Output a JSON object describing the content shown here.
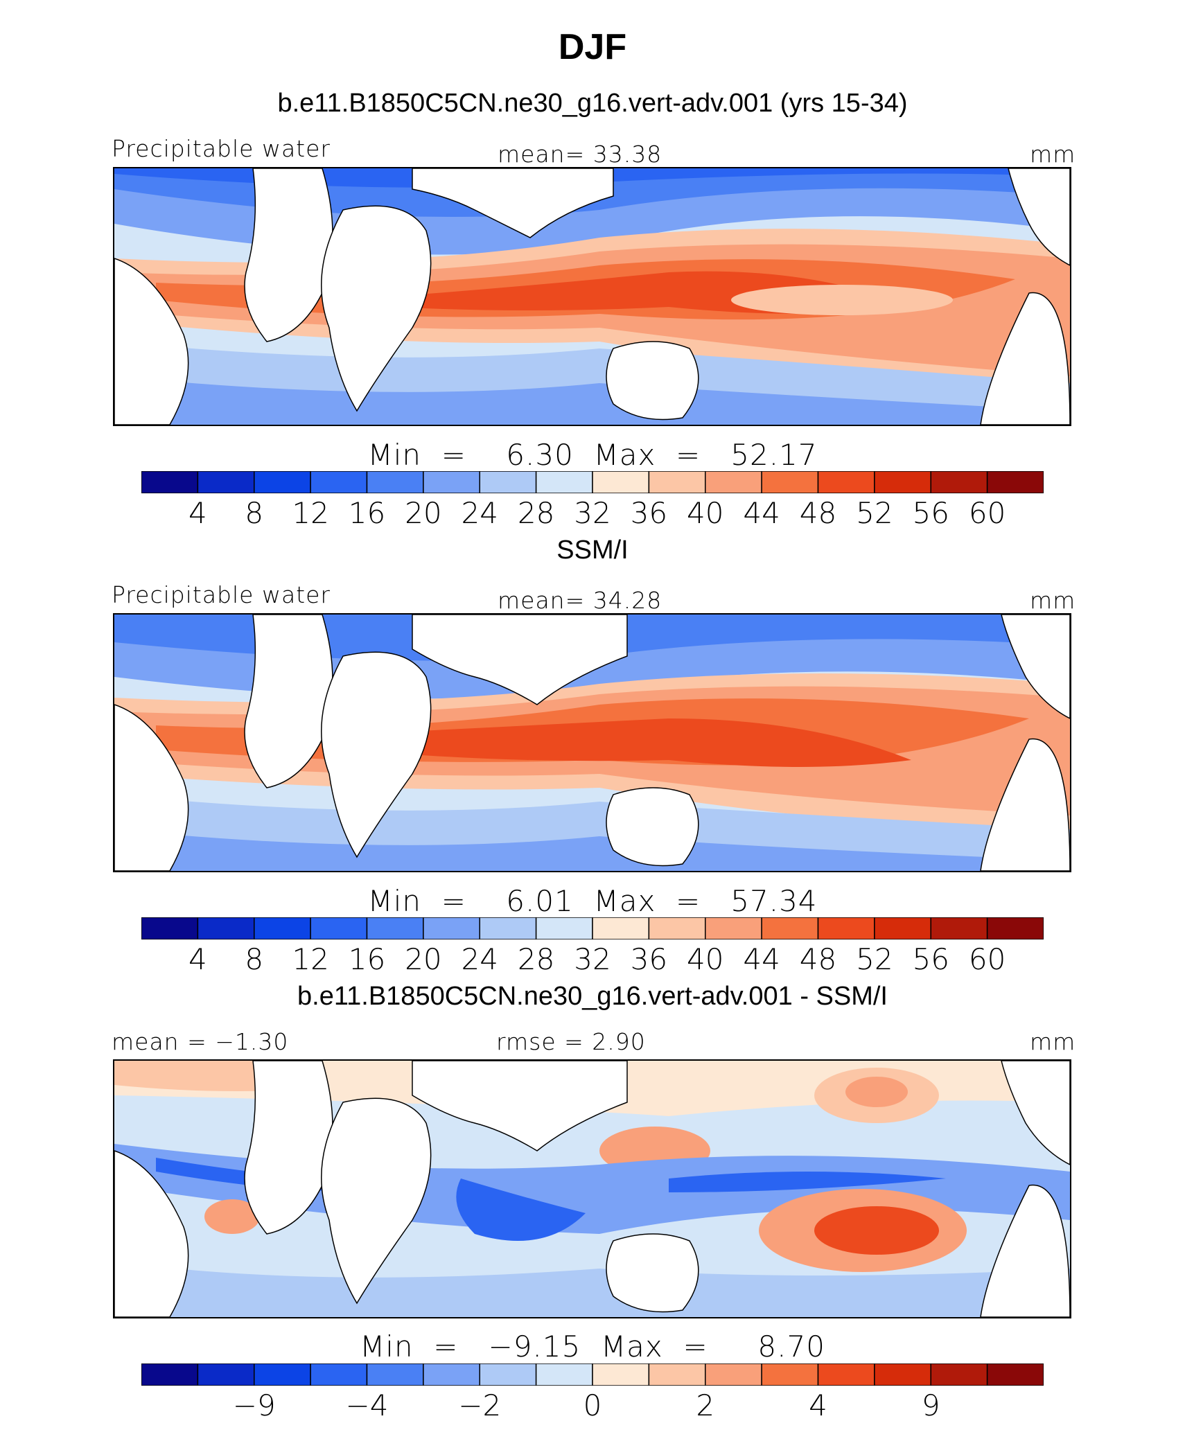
{
  "title": "DJF",
  "panels": [
    {
      "title": "b.e11.B1850C5CN.ne30_g16.vert-adv.001 (yrs 15-34)",
      "left_label": "Precipitable water",
      "center_label": "mean=   33.38",
      "right_label": "mm",
      "minmax": "Min  =    6.30  Max  =   52.17",
      "colorbar_ticks": [
        "4",
        "8",
        "12",
        "16",
        "20",
        "24",
        "28",
        "32",
        "36",
        "40",
        "44",
        "48",
        "52",
        "56",
        "60"
      ],
      "min": 6.3,
      "max": 52.17,
      "mean": 33.38
    },
    {
      "title": "SSM/I",
      "left_label": "Precipitable water",
      "center_label": "mean=   34.28",
      "right_label": "mm",
      "minmax": "Min  =    6.01  Max  =   57.34",
      "colorbar_ticks": [
        "4",
        "8",
        "12",
        "16",
        "20",
        "24",
        "28",
        "32",
        "36",
        "40",
        "44",
        "48",
        "52",
        "56",
        "60"
      ],
      "min": 6.01,
      "max": 57.34,
      "mean": 34.28
    },
    {
      "title": "b.e11.B1850C5CN.ne30_g16.vert-adv.001 - SSM/I",
      "left_label": "mean =   −1.30",
      "center_label": "rmse =     2.90",
      "right_label": "mm",
      "minmax": "Min  =   −9.15  Max  =     8.70",
      "colorbar_ticks": [
        "−9",
        "−4",
        "−2",
        "0",
        "2",
        "4",
        "9"
      ],
      "min": -9.15,
      "max": 8.7,
      "mean": -1.3,
      "rmse": 2.9
    }
  ],
  "colorbar_colors": [
    "#08088c",
    "#0a2ac8",
    "#0c44e6",
    "#2a64f2",
    "#4a80f4",
    "#7aa2f6",
    "#aecaf6",
    "#d4e6f8",
    "#fde8d4",
    "#fcc6a6",
    "#f9a07a",
    "#f4723e",
    "#ec4a1e",
    "#d62c0a",
    "#b01a0a",
    "#8a0808"
  ]
}
